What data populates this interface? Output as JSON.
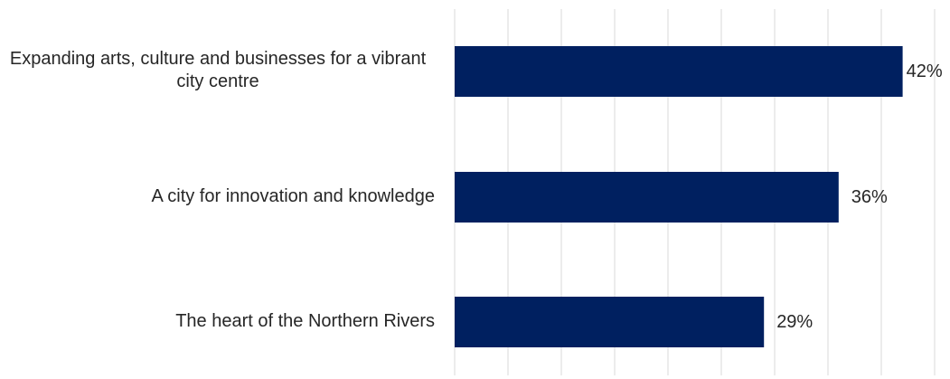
{
  "chart_data": {
    "type": "bar",
    "orientation": "horizontal",
    "categories": [
      "Expanding arts, culture and businesses for a vibrant city centre",
      "A city for innovation and knowledge",
      "The heart of the Northern Rivers"
    ],
    "values": [
      42,
      36,
      29
    ],
    "value_labels": [
      "42%",
      "36%",
      "29%"
    ],
    "xlim": [
      0,
      46
    ],
    "grid": true,
    "bar_color": "#002060",
    "title": "",
    "xlabel": "",
    "ylabel": ""
  }
}
